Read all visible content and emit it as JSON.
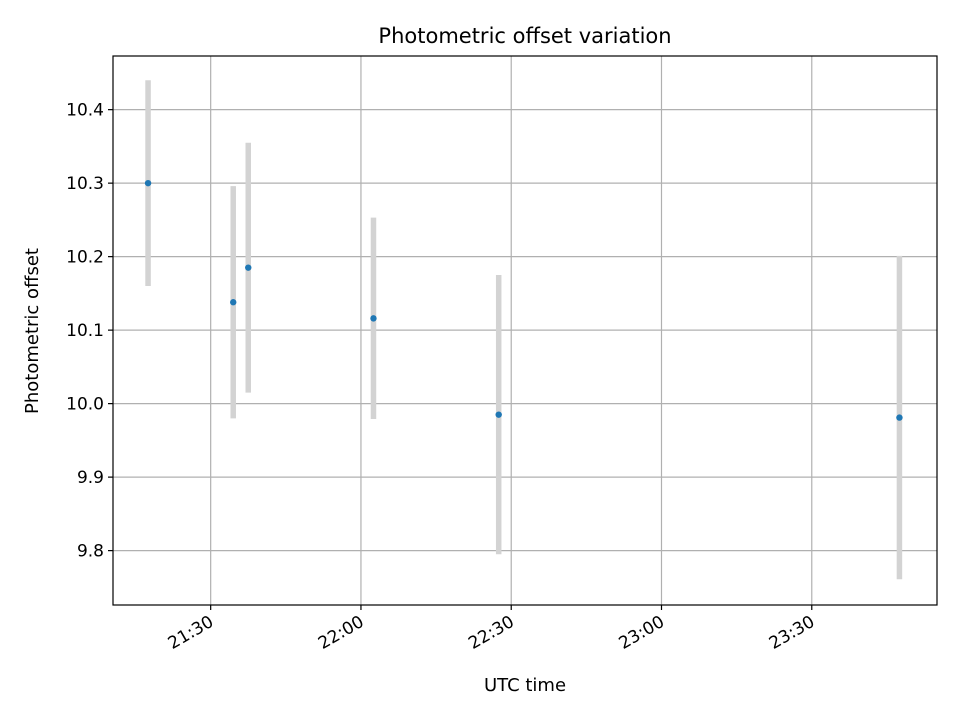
{
  "chart_data": {
    "type": "scatter",
    "title": "Photometric offset variation",
    "xlabel": "UTC time",
    "ylabel": "Photometric offset",
    "grid": true,
    "x_axis": {
      "kind": "time",
      "range": [
        "21:10:30",
        "23:55:00"
      ],
      "ticks": [
        "21:30",
        "22:00",
        "22:30",
        "23:00",
        "23:30"
      ]
    },
    "y_axis": {
      "range": [
        9.726,
        10.473
      ],
      "ticks": [
        9.8,
        9.9,
        10.0,
        10.1,
        10.2,
        10.3,
        10.4
      ]
    },
    "points": [
      {
        "time": "21:17:30",
        "y": 10.3,
        "error": 0.14
      },
      {
        "time": "21:34:30",
        "y": 10.138,
        "error": 0.158
      },
      {
        "time": "21:37:30",
        "y": 10.185,
        "error": 0.17
      },
      {
        "time": "22:02:30",
        "y": 10.116,
        "error": 0.137
      },
      {
        "time": "22:27:30",
        "y": 9.985,
        "error": 0.19
      },
      {
        "time": "23:47:30",
        "y": 9.981,
        "error": 0.22
      }
    ],
    "colors": {
      "marker": "#1f77b4",
      "errorbar": "#d3d3d3",
      "grid": "#b0b0b0",
      "axes": "#000000"
    }
  }
}
